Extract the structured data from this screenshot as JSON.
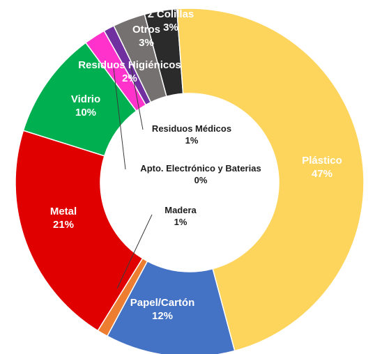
{
  "chart_data": {
    "type": "pie",
    "subtype": "donut",
    "title": "",
    "slices": [
      {
        "label": "Colillas",
        "display_label": "Σ Colillas",
        "value": 3,
        "value_label": "3%",
        "color": "#2b2b2b"
      },
      {
        "label": "Plástico",
        "display_label": "Plástico",
        "value": 47,
        "value_label": "47%",
        "color": "#fdd45c"
      },
      {
        "label": "Papel/Cartón",
        "display_label": "Papel/Cartón",
        "value": 12,
        "value_label": "12%",
        "color": "#4472c4"
      },
      {
        "label": "Madera",
        "display_label": "Madera",
        "value": 1,
        "value_label": "1%",
        "color": "#ed7d31"
      },
      {
        "label": "Metal",
        "display_label": "Metal",
        "value": 21,
        "value_label": "21%",
        "color": "#e00000"
      },
      {
        "label": "Vidrio",
        "display_label": "Vidrio",
        "value": 10,
        "value_label": "10%",
        "color": "#00b050"
      },
      {
        "label": "Apto. Electrónico y Baterias",
        "display_label": "Apto. Electrónico y Baterias",
        "value": 0,
        "value_label": "0%",
        "color": "#9dc3e6"
      },
      {
        "label": "Residuos Higiénicos",
        "display_label": "Residuos Higiénicos",
        "value": 2,
        "value_label": "2%",
        "color": "#ff33cc"
      },
      {
        "label": "Residuos Médicos",
        "display_label": "Residuos Médicos",
        "value": 1,
        "value_label": "1%",
        "color": "#7030a0"
      },
      {
        "label": "Otros",
        "display_label": "Otros",
        "value": 3,
        "value_label": "3%",
        "color": "#767171"
      }
    ]
  }
}
